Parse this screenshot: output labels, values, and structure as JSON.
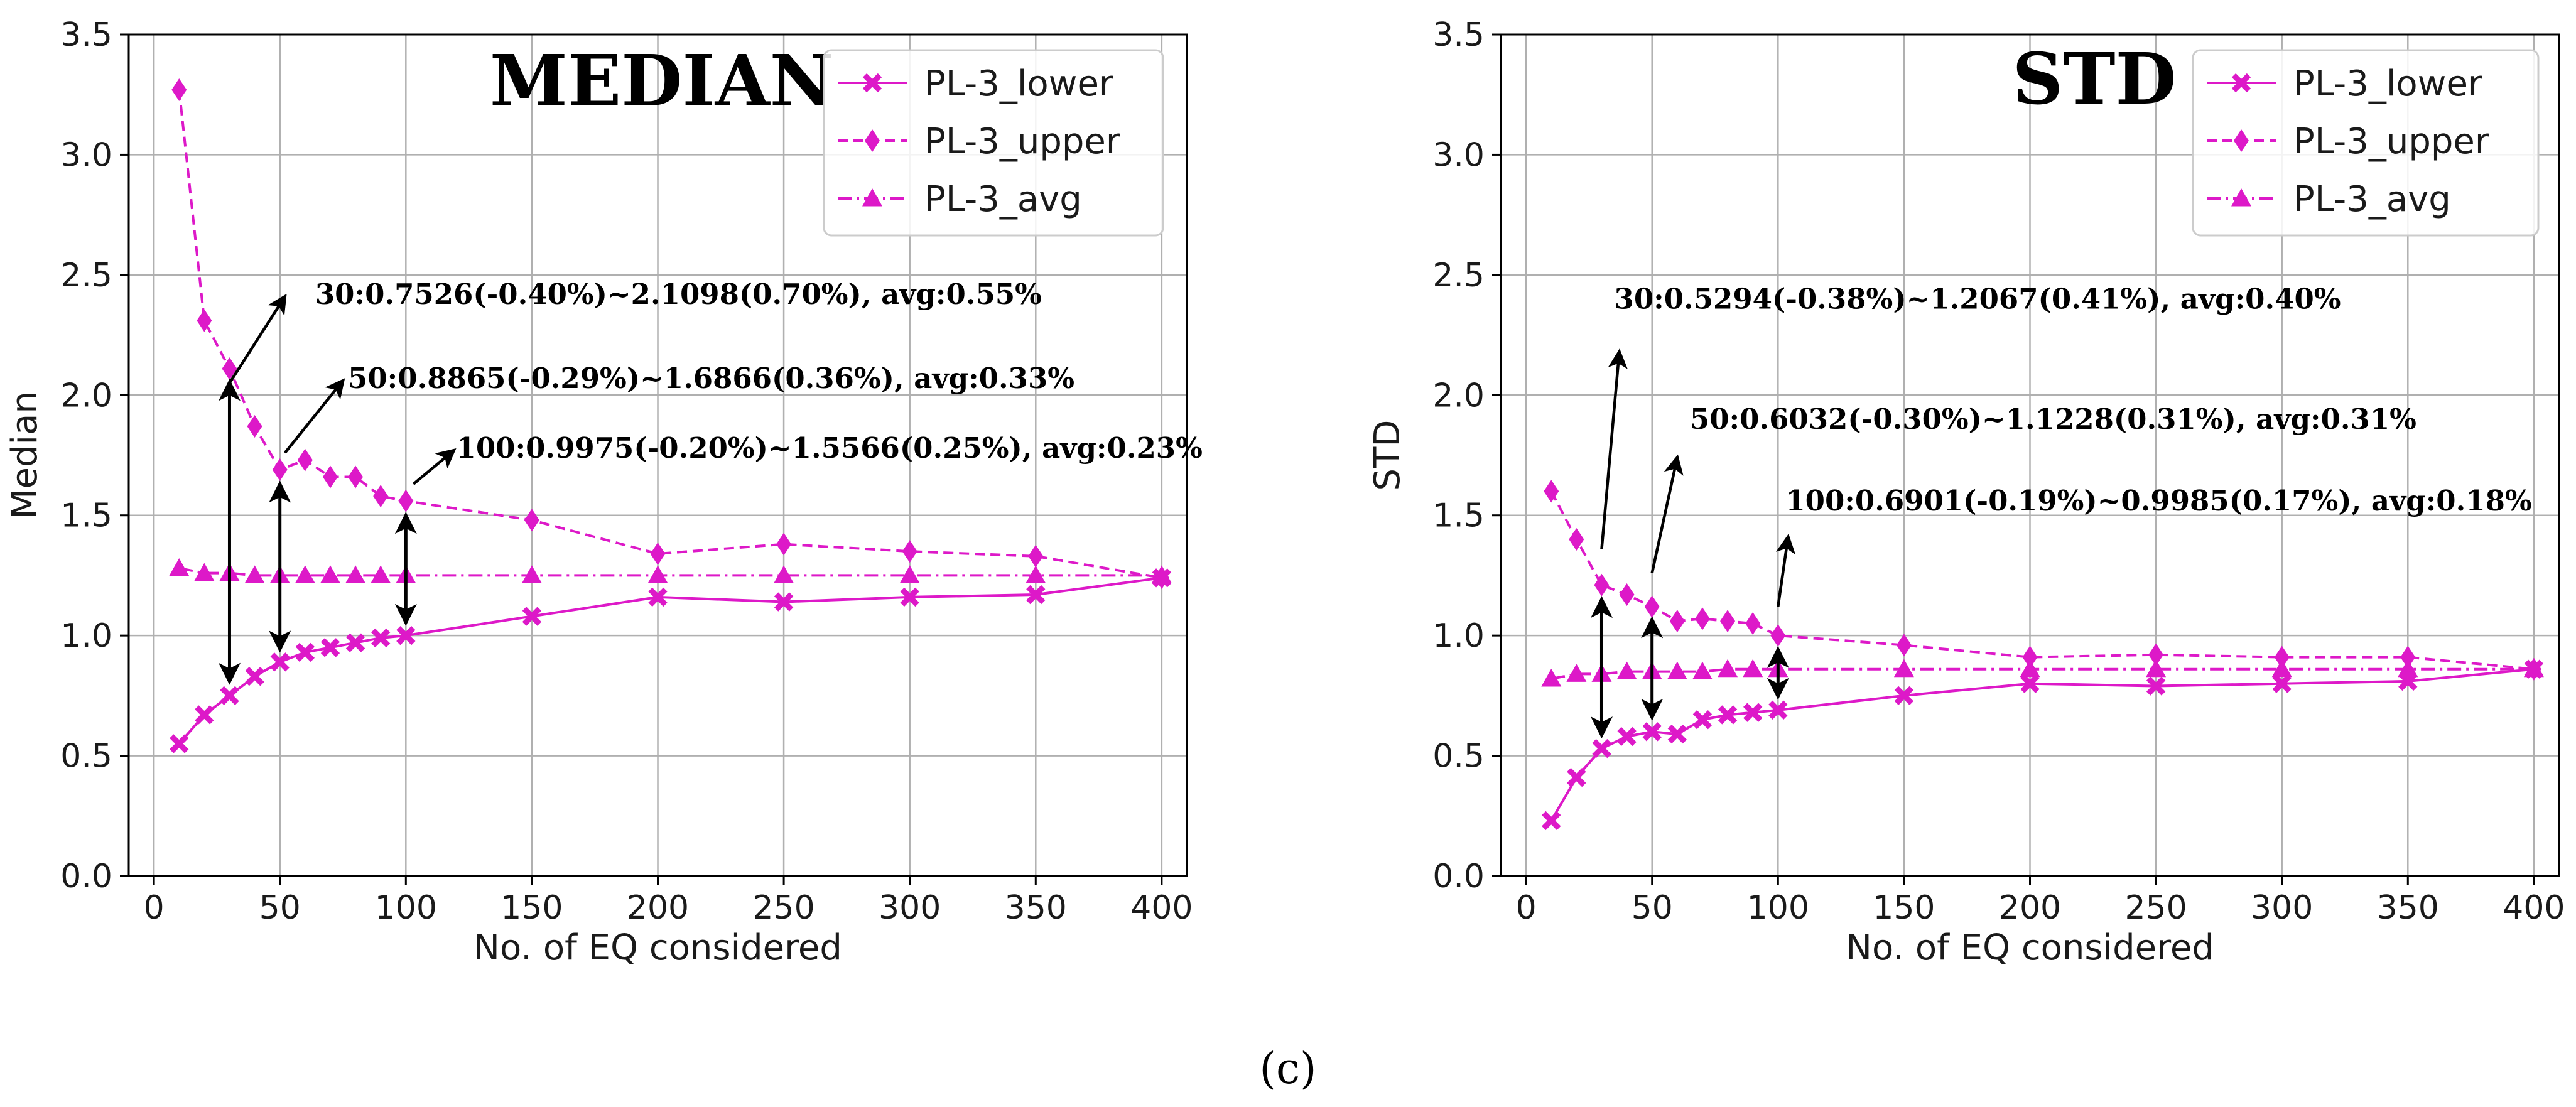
{
  "caption": "(c)",
  "chart_data": [
    {
      "type": "line",
      "panel_title": "MEDIAN",
      "xlabel": "No. of EQ considered",
      "ylabel": "Median",
      "xlim": [
        -10,
        410
      ],
      "ylim": [
        0,
        3.5
      ],
      "xticks": [
        0,
        50,
        100,
        150,
        200,
        250,
        300,
        350,
        400
      ],
      "yticks": [
        0.0,
        0.5,
        1.0,
        1.5,
        2.0,
        2.5,
        3.0,
        3.5
      ],
      "ytick_labels": [
        "0.0",
        "0.5",
        "1.0",
        "1.5",
        "2.0",
        "2.5",
        "3.0",
        "3.5"
      ],
      "grid": true,
      "legend_position": "top-right",
      "color": "#DD19C8",
      "x": [
        10,
        20,
        30,
        40,
        50,
        60,
        70,
        80,
        90,
        100,
        150,
        200,
        250,
        300,
        350,
        400
      ],
      "series": [
        {
          "name": "PL-3_lower",
          "marker": "x",
          "style": "solid",
          "values": [
            0.55,
            0.67,
            0.75,
            0.83,
            0.89,
            0.93,
            0.95,
            0.97,
            0.99,
            1.0,
            1.08,
            1.16,
            1.14,
            1.16,
            1.17,
            1.24
          ]
        },
        {
          "name": "PL-3_upper",
          "marker": "diamond",
          "style": "dashed",
          "values": [
            3.27,
            2.31,
            2.11,
            1.87,
            1.69,
            1.73,
            1.66,
            1.66,
            1.58,
            1.56,
            1.48,
            1.34,
            1.38,
            1.35,
            1.33,
            1.24
          ]
        },
        {
          "name": "PL-3_avg",
          "marker": "triangle",
          "style": "dashdot",
          "values": [
            1.28,
            1.26,
            1.26,
            1.25,
            1.25,
            1.25,
            1.25,
            1.25,
            1.25,
            1.25,
            1.25,
            1.25,
            1.25,
            1.25,
            1.25,
            1.25
          ]
        }
      ],
      "range_arrows": [
        {
          "x": 30,
          "y_low": 0.7526,
          "y_high": 2.1098
        },
        {
          "x": 50,
          "y_low": 0.8865,
          "y_high": 1.6866
        },
        {
          "x": 100,
          "y_low": 0.9975,
          "y_high": 1.5566
        }
      ],
      "annotations": [
        {
          "text": "30:0.7526(-0.40%)~2.1098(0.70%), avg:0.55%",
          "point": [
            30,
            2.05
          ],
          "pointer_end": [
            52,
            2.41
          ],
          "text_anchor": [
            64,
            2.38
          ]
        },
        {
          "text": "50:0.8865(-0.29%)~1.6866(0.36%), avg:0.33%",
          "point": [
            52,
            1.76
          ],
          "pointer_end": [
            75,
            2.06
          ],
          "text_anchor": [
            77,
            2.03
          ]
        },
        {
          "text": "100:0.9975(-0.20%)~1.5566(0.25%), avg:0.23%",
          "point": [
            103,
            1.63
          ],
          "pointer_end": [
            119,
            1.77
          ],
          "text_anchor": [
            120,
            1.74
          ]
        }
      ]
    },
    {
      "type": "line",
      "panel_title": "STD",
      "xlabel": "No. of EQ considered",
      "ylabel": "STD",
      "xlim": [
        -10,
        410
      ],
      "ylim": [
        0,
        3.5
      ],
      "xticks": [
        0,
        50,
        100,
        150,
        200,
        250,
        300,
        350,
        400
      ],
      "yticks": [
        0.0,
        0.5,
        1.0,
        1.5,
        2.0,
        2.5,
        3.0,
        3.5
      ],
      "ytick_labels": [
        "0.0",
        "0.5",
        "1.0",
        "1.5",
        "2.0",
        "2.5",
        "3.0",
        "3.5"
      ],
      "grid": true,
      "legend_position": "top-right",
      "color": "#DD19C8",
      "x": [
        10,
        20,
        30,
        40,
        50,
        60,
        70,
        80,
        90,
        100,
        150,
        200,
        250,
        300,
        350,
        400
      ],
      "series": [
        {
          "name": "PL-3_lower",
          "marker": "x",
          "style": "solid",
          "values": [
            0.23,
            0.41,
            0.53,
            0.58,
            0.6,
            0.59,
            0.65,
            0.67,
            0.68,
            0.69,
            0.75,
            0.8,
            0.79,
            0.8,
            0.81,
            0.86
          ]
        },
        {
          "name": "PL-3_upper",
          "marker": "diamond",
          "style": "dashed",
          "values": [
            1.6,
            1.4,
            1.21,
            1.17,
            1.12,
            1.06,
            1.07,
            1.06,
            1.05,
            1.0,
            0.96,
            0.91,
            0.92,
            0.91,
            0.91,
            0.86
          ]
        },
        {
          "name": "PL-3_avg",
          "marker": "triangle",
          "style": "dashdot",
          "values": [
            0.82,
            0.84,
            0.84,
            0.85,
            0.85,
            0.85,
            0.85,
            0.86,
            0.86,
            0.86,
            0.86,
            0.86,
            0.86,
            0.86,
            0.86,
            0.86
          ]
        }
      ],
      "range_arrows": [
        {
          "x": 30,
          "y_low": 0.5294,
          "y_high": 1.2067
        },
        {
          "x": 50,
          "y_low": 0.6032,
          "y_high": 1.1228
        },
        {
          "x": 100,
          "y_low": 0.6901,
          "y_high": 0.9985
        }
      ],
      "annotations": [
        {
          "text": "30:0.5294(-0.38%)~1.2067(0.41%), avg:0.40%",
          "point": [
            30,
            1.36
          ],
          "pointer_end": [
            37,
            2.18
          ],
          "text_anchor": [
            35,
            2.36
          ]
        },
        {
          "text": "50:0.6032(-0.30%)~1.1228(0.31%), avg:0.31%",
          "point": [
            50,
            1.26
          ],
          "pointer_end": [
            60,
            1.74
          ],
          "text_anchor": [
            65,
            1.86
          ]
        },
        {
          "text": "100:0.6901(-0.19%)~0.9985(0.17%), avg:0.18%",
          "point": [
            100,
            1.12
          ],
          "pointer_end": [
            104,
            1.41
          ],
          "text_anchor": [
            103,
            1.52
          ]
        }
      ]
    }
  ]
}
